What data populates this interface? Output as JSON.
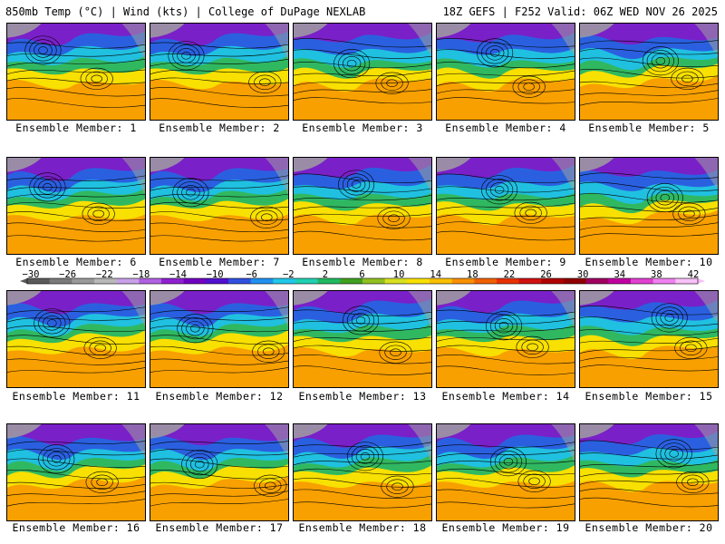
{
  "header": {
    "left": "850mb Temp (°C) | Wind (kts) | College of DuPage NEXLAB",
    "right": "18Z GEFS | F252 Valid: 06Z WED NOV 26 2025"
  },
  "members": [
    "Ensemble Member: 1",
    "Ensemble Member: 2",
    "Ensemble Member: 3",
    "Ensemble Member: 4",
    "Ensemble Member: 5",
    "Ensemble Member: 6",
    "Ensemble Member: 7",
    "Ensemble Member: 8",
    "Ensemble Member: 9",
    "Ensemble Member: 10",
    "Ensemble Member: 11",
    "Ensemble Member: 12",
    "Ensemble Member: 13",
    "Ensemble Member: 14",
    "Ensemble Member: 15",
    "Ensemble Member: 16",
    "Ensemble Member: 17",
    "Ensemble Member: 18",
    "Ensemble Member: 19",
    "Ensemble Member: 20"
  ],
  "colorbar": {
    "labels": [
      "−30",
      "−26",
      "−22",
      "−18",
      "−14",
      "−10",
      "−6",
      "−2",
      "2",
      "6",
      "10",
      "14",
      "18",
      "22",
      "26",
      "30",
      "34",
      "38",
      "42"
    ],
    "colors": [
      "#5a5a5a",
      "#7a7a7a",
      "#9a9a9a",
      "#b8b8b8",
      "#c8a0e8",
      "#b060e0",
      "#9020d0",
      "#7000c0",
      "#5010d0",
      "#3050e0",
      "#2090f0",
      "#20c8e8",
      "#20d0b0",
      "#20b860",
      "#40a020",
      "#90c020",
      "#d8e020",
      "#f8e000",
      "#f8c000",
      "#f89000",
      "#f06000",
      "#e83000",
      "#d01010",
      "#b00000",
      "#900000",
      "#a00060",
      "#c000a0",
      "#e040d0",
      "#f080f0",
      "#f8c0f8"
    ]
  },
  "colors": {
    "polar": "#7a20c8",
    "cold": "#2a60e0",
    "cool": "#20c0e0",
    "mild": "#30b860",
    "warm": "#f8e000",
    "hot": "#f8a000",
    "land": "#a0a0a0",
    "contour": "#000000"
  }
}
